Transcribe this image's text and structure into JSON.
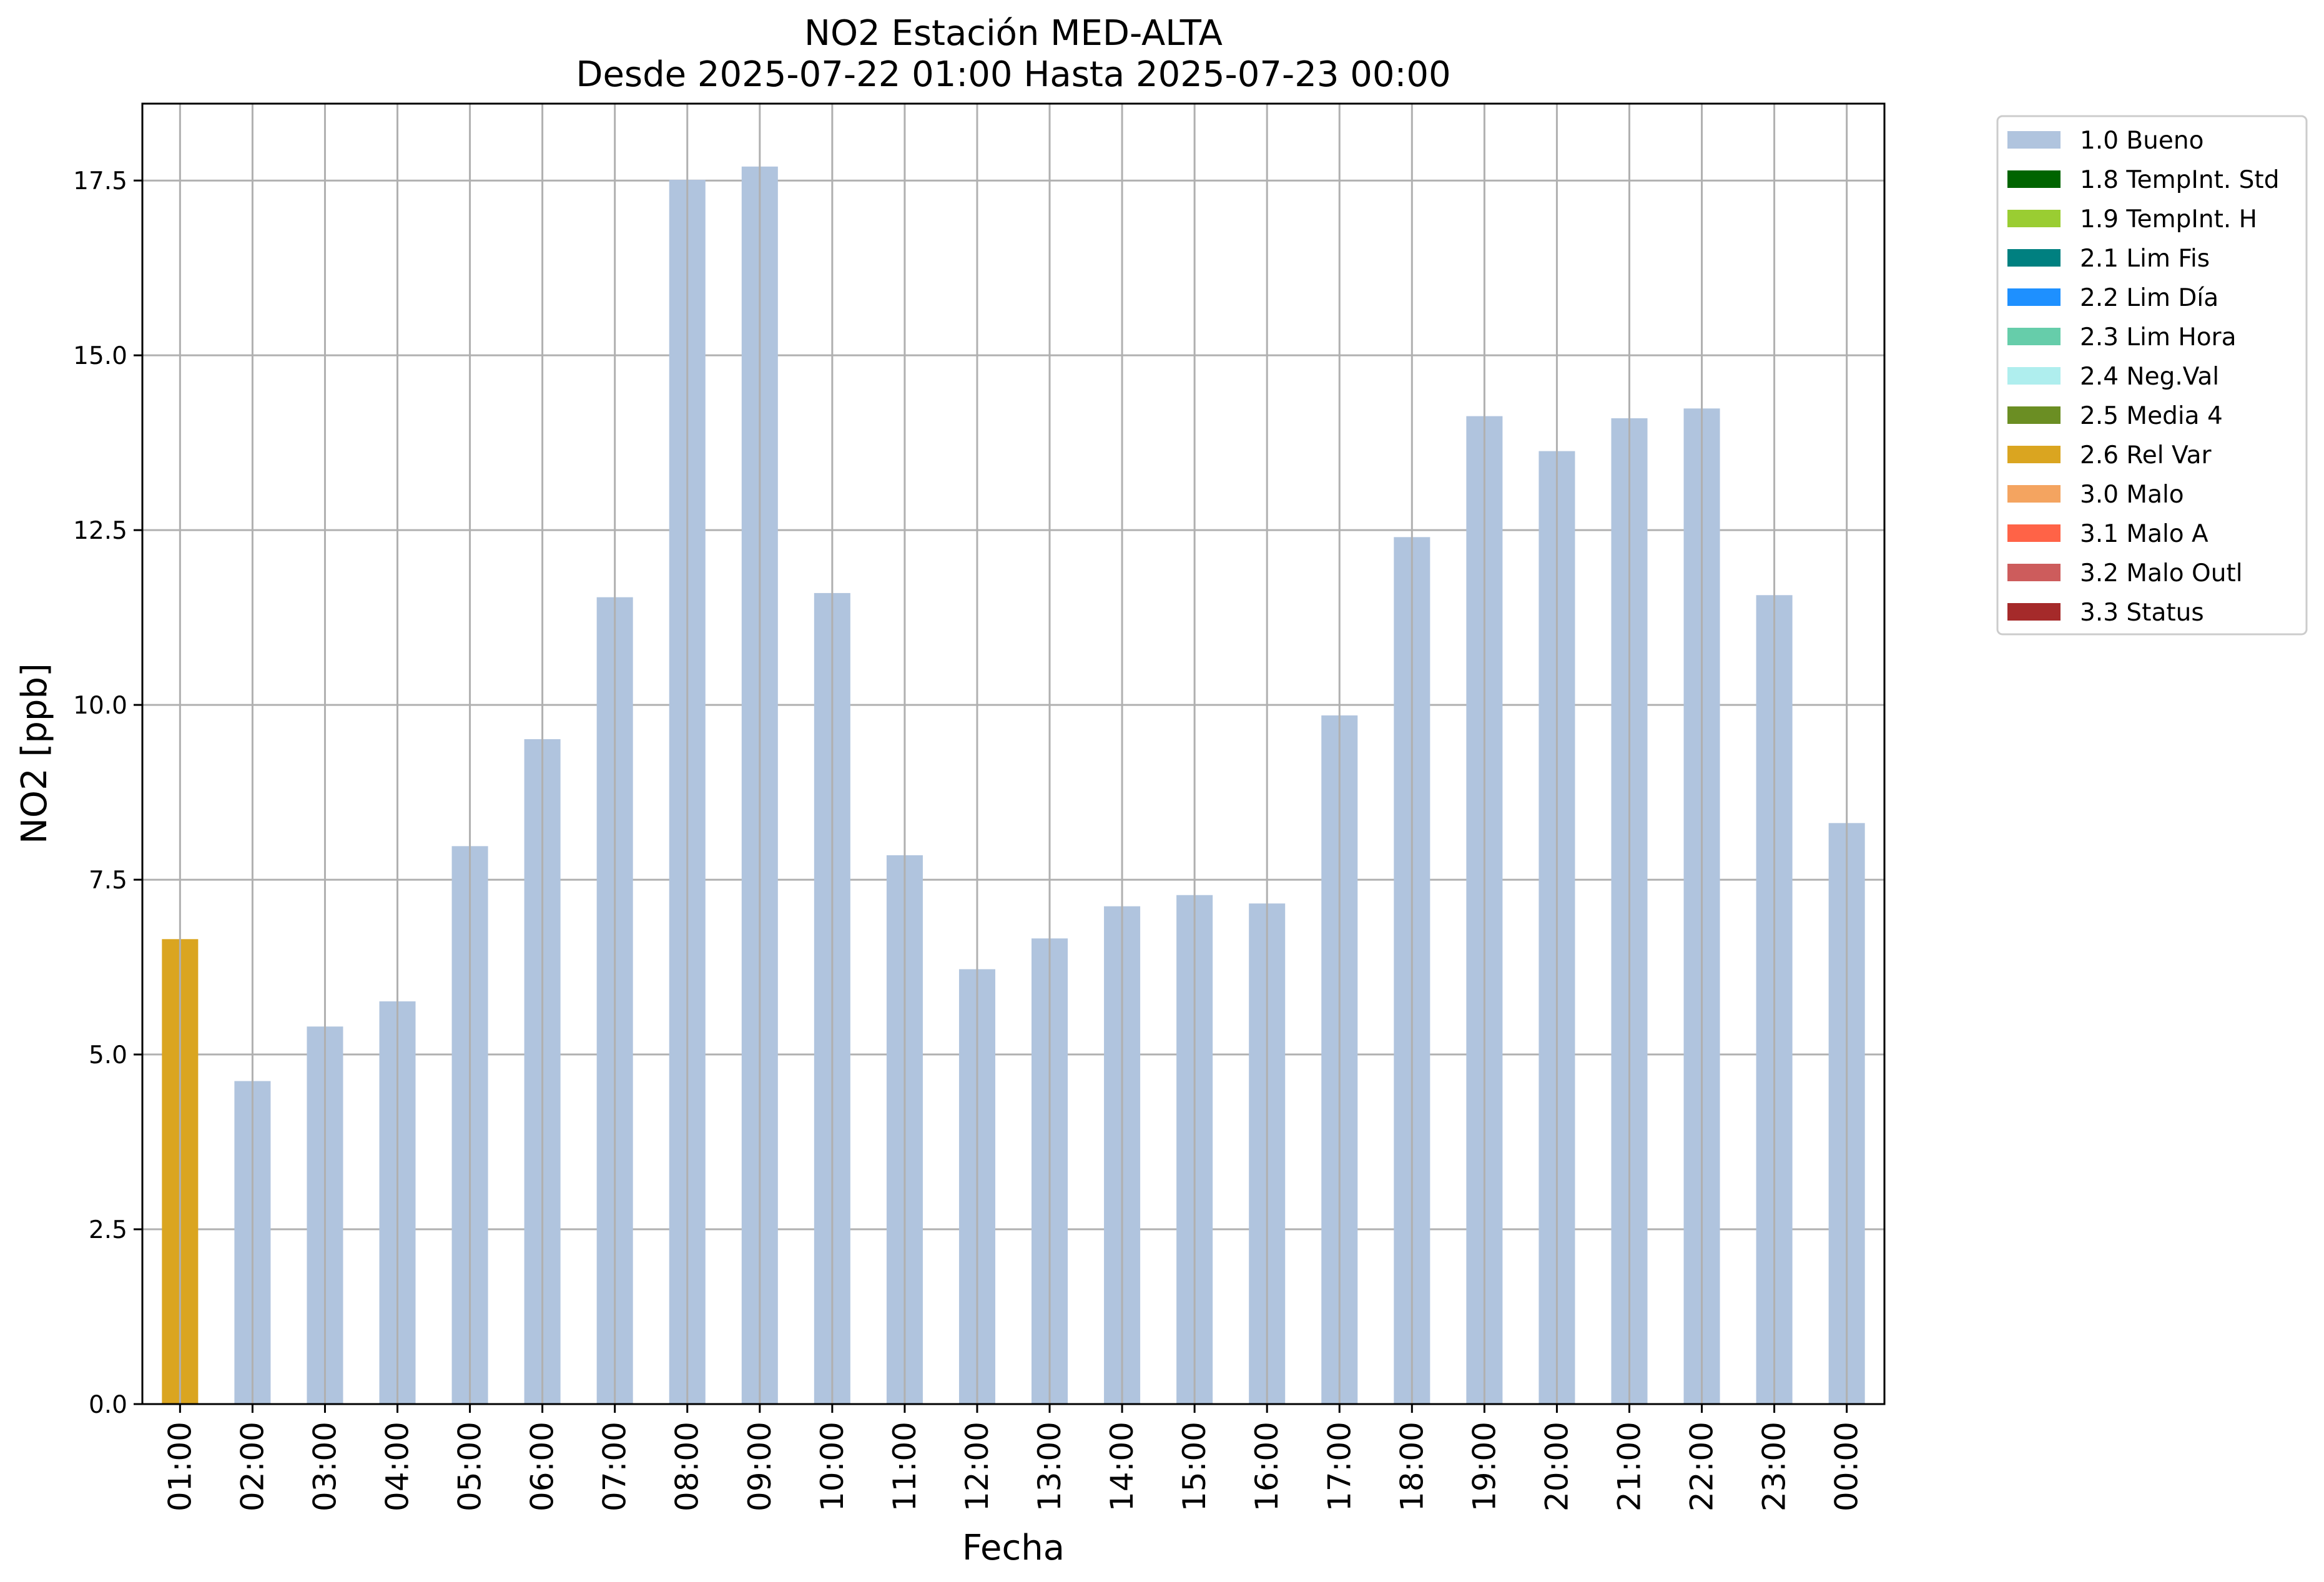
{
  "chart_data": {
    "type": "bar",
    "title": "NO2 Estación MED-ALTA",
    "subtitle": "Desde 2025-07-22 01:00 Hasta 2025-07-23 00:00",
    "xlabel": "Fecha",
    "ylabel": "NO2 [ppb]",
    "ylim": [
      0,
      18.6
    ],
    "yticks": [
      "0.0",
      "2.5",
      "5.0",
      "7.5",
      "10.0",
      "12.5",
      "15.0",
      "17.5"
    ],
    "grid": true,
    "legend_position": "outside-top-right",
    "categories": [
      "01:00",
      "02:00",
      "03:00",
      "04:00",
      "05:00",
      "06:00",
      "07:00",
      "08:00",
      "09:00",
      "10:00",
      "11:00",
      "12:00",
      "13:00",
      "14:00",
      "15:00",
      "16:00",
      "17:00",
      "18:00",
      "19:00",
      "20:00",
      "21:00",
      "22:00",
      "23:00",
      "00:00"
    ],
    "values": [
      6.65,
      4.62,
      5.4,
      5.76,
      7.98,
      9.51,
      11.54,
      17.51,
      17.7,
      11.6,
      7.85,
      6.22,
      6.66,
      7.12,
      7.28,
      7.16,
      9.85,
      12.4,
      14.13,
      13.63,
      14.1,
      14.24,
      11.57,
      8.31
    ],
    "flags": [
      "2.6 Rel Var",
      "1.0 Bueno",
      "1.0 Bueno",
      "1.0 Bueno",
      "1.0 Bueno",
      "1.0 Bueno",
      "1.0 Bueno",
      "1.0 Bueno",
      "1.0 Bueno",
      "1.0 Bueno",
      "1.0 Bueno",
      "1.0 Bueno",
      "1.0 Bueno",
      "1.0 Bueno",
      "1.0 Bueno",
      "1.0 Bueno",
      "1.0 Bueno",
      "1.0 Bueno",
      "1.0 Bueno",
      "1.0 Bueno",
      "1.0 Bueno",
      "1.0 Bueno",
      "1.0 Bueno",
      "1.0 Bueno"
    ],
    "legend": [
      {
        "label": "1.0 Bueno",
        "color": "#b0c4de"
      },
      {
        "label": "1.8 TempInt. Std",
        "color": "#006400"
      },
      {
        "label": "1.9 TempInt. H",
        "color": "#9acd32"
      },
      {
        "label": "2.1 Lim Fis",
        "color": "#008080"
      },
      {
        "label": "2.2 Lim Día",
        "color": "#1e90ff"
      },
      {
        "label": "2.3 Lim Hora",
        "color": "#66cdaa"
      },
      {
        "label": "2.4 Neg.Val",
        "color": "#afeeee"
      },
      {
        "label": "2.5 Media 4",
        "color": "#6b8e23"
      },
      {
        "label": "2.6 Rel Var",
        "color": "#daa520"
      },
      {
        "label": "3.0 Malo",
        "color": "#f4a460"
      },
      {
        "label": "3.1 Malo A",
        "color": "#ff6347"
      },
      {
        "label": "3.2 Malo Outl",
        "color": "#cd5c5c"
      },
      {
        "label": "3.3 Status",
        "color": "#a52a2a"
      }
    ]
  }
}
